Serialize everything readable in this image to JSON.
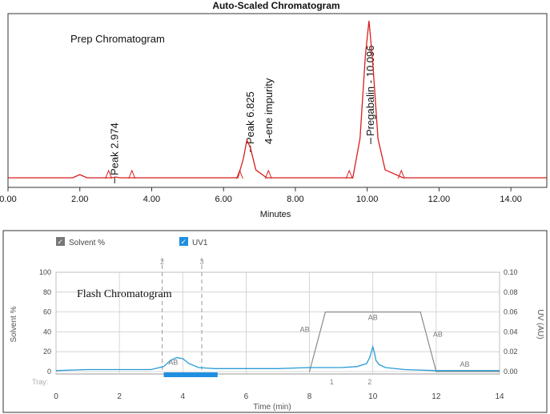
{
  "colors": {
    "prep_trace": "#d81e1e",
    "flash_uv": "#2a9bd6",
    "solvent": "#8a8a8a",
    "fraction_bar": "#1f8fe0",
    "grid": "#cccccc"
  },
  "chart_data": [
    {
      "type": "line",
      "title": "Auto-Scaled Chromatogram",
      "inner_label": "Prep Chromatogram",
      "xlabel": "Minutes",
      "xlim": [
        0,
        15
      ],
      "ylim": [
        0,
        1
      ],
      "xticks": [
        "0.00",
        "2.00",
        "4.00",
        "6.00",
        "8.00",
        "10.00",
        "12.00",
        "14.00"
      ],
      "xtick_values": [
        0,
        2,
        4,
        6,
        8,
        10,
        12,
        14
      ],
      "grid": false,
      "series": [
        {
          "x": [
            0,
            1.8,
            2.0,
            2.2,
            2.9,
            3.0,
            3.1,
            6.4,
            6.55,
            6.65,
            6.75,
            6.9,
            7.2,
            9.6,
            9.8,
            9.95,
            10.05,
            10.15,
            10.3,
            10.5,
            11.0,
            15
          ],
          "y": [
            0.0,
            0.0,
            0.02,
            0.0,
            0.0,
            0.005,
            0.0,
            0.0,
            0.12,
            0.24,
            0.19,
            0.05,
            0.0,
            0.0,
            0.25,
            0.78,
            1.0,
            0.75,
            0.25,
            0.05,
            0.0,
            0.0
          ]
        }
      ],
      "peak_labels": [
        {
          "x": 2.97,
          "lines": [
            "Peak   2.974"
          ]
        },
        {
          "x": 6.75,
          "lines": [
            "Peak  6.825",
            "4-ene impurity"
          ]
        },
        {
          "x": 10.1,
          "lines": [
            "Pregabalin - 10.096"
          ]
        }
      ],
      "markers_x": [
        2.8,
        3.45,
        6.45,
        7.25,
        9.5,
        10.95
      ]
    },
    {
      "type": "line",
      "inner_label": "Flash Chromatogram",
      "legend": [
        "Solvent %",
        "UV1"
      ],
      "xlabel": "Time (min)",
      "ylabel": "Solvent %",
      "ylabel_right": "UV (AU)",
      "xlim": [
        0,
        14
      ],
      "ylim": [
        0,
        100
      ],
      "ylim_right": [
        0,
        0.1
      ],
      "xticks": [
        "0",
        "2",
        "4",
        "6",
        "8",
        "10",
        "12",
        "14"
      ],
      "xtick_values": [
        0,
        2,
        4,
        6,
        8,
        10,
        12,
        14
      ],
      "yticks": [
        "0",
        "20",
        "40",
        "60",
        "80",
        "100"
      ],
      "ytick_values": [
        0,
        20,
        40,
        60,
        80,
        100
      ],
      "yticks_right": [
        "0.00",
        "0.02",
        "0.04",
        "0.06",
        "0.08",
        "0.10"
      ],
      "ytick_values_right": [
        0,
        0.02,
        0.04,
        0.06,
        0.08,
        0.1
      ],
      "grid": true,
      "solvent": {
        "x": [
          8.0,
          8.5,
          11.5,
          12.0,
          14
        ],
        "y": [
          0,
          60,
          60,
          0,
          0
        ]
      },
      "segment_labels": [
        {
          "x": 3.7,
          "y": 7,
          "text": "AB"
        },
        {
          "x": 7.85,
          "y": 40,
          "text": "AB"
        },
        {
          "x": 10.0,
          "y": 52,
          "text": "AB"
        },
        {
          "x": 12.05,
          "y": 35,
          "text": "AB"
        },
        {
          "x": 12.9,
          "y": 5,
          "text": "AB"
        }
      ],
      "uv": {
        "x": [
          0,
          1,
          2,
          3,
          3.4,
          3.6,
          3.8,
          4.0,
          4.2,
          4.5,
          5,
          6,
          7,
          8,
          9,
          9.5,
          9.8,
          9.9,
          10.0,
          10.05,
          10.1,
          10.2,
          10.4,
          11,
          12,
          13,
          14
        ],
        "y": [
          0.001,
          0.002,
          0.002,
          0.002,
          0.005,
          0.011,
          0.014,
          0.013,
          0.008,
          0.004,
          0.003,
          0.003,
          0.003,
          0.004,
          0.004,
          0.005,
          0.008,
          0.014,
          0.025,
          0.019,
          0.011,
          0.007,
          0.004,
          0.002,
          0.001,
          0.001,
          0.001
        ]
      },
      "fraction_lines": [
        {
          "x": 3.35,
          "label": "2"
        },
        {
          "x": 4.6,
          "label": "3"
        }
      ],
      "fraction_tray": {
        "x0": 3.4,
        "x1": 5.1,
        "label": "Tray:"
      },
      "rack_labels": [
        {
          "x": 8.7,
          "text": "1"
        },
        {
          "x": 9.9,
          "text": "2"
        }
      ]
    }
  ]
}
